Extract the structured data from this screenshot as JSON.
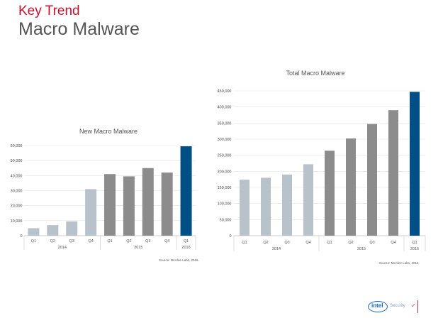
{
  "slide": {
    "kicker": "Key Trend",
    "title": "Macro Malware",
    "kicker_color": "#c8102e",
    "title_color": "#555555"
  },
  "chart_data": [
    {
      "type": "bar",
      "title": "New Macro Malware",
      "categories": [
        "Q1",
        "Q2",
        "Q3",
        "Q4",
        "Q1",
        "Q2",
        "Q3",
        "Q4",
        "Q1"
      ],
      "year_groups": [
        {
          "label": "2014",
          "count": 4
        },
        {
          "label": "2015",
          "count": 4
        },
        {
          "label": "2016",
          "count": 1
        }
      ],
      "values": [
        5000,
        7000,
        9500,
        31000,
        41000,
        39500,
        45000,
        42000,
        59500
      ],
      "bar_colors": [
        "#b8c2ca",
        "#b8c2ca",
        "#b8c2ca",
        "#b8c2ca",
        "#8c8c8c",
        "#8c8c8c",
        "#8c8c8c",
        "#8c8c8c",
        "#005087"
      ],
      "yticks": [
        0,
        10000,
        20000,
        30000,
        40000,
        50000,
        60000
      ],
      "ytick_labels": [
        "0",
        "10,000",
        "20,000",
        "30,000",
        "40,000",
        "50,000",
        "60,000"
      ],
      "ylim": [
        0,
        60000
      ],
      "grid": true,
      "legend": "none",
      "source": "Source: McAfee Labs, 2016."
    },
    {
      "type": "bar",
      "title": "Total Macro Malware",
      "categories": [
        "Q1",
        "Q2",
        "Q3",
        "Q4",
        "Q1",
        "Q2",
        "Q3",
        "Q4",
        "Q1"
      ],
      "year_groups": [
        {
          "label": "2014",
          "count": 4
        },
        {
          "label": "2015",
          "count": 4
        },
        {
          "label": "2016",
          "count": 1
        }
      ],
      "values": [
        174000,
        180000,
        190000,
        222000,
        264000,
        302000,
        347000,
        390000,
        447000
      ],
      "bar_colors": [
        "#b8c2ca",
        "#b8c2ca",
        "#b8c2ca",
        "#b8c2ca",
        "#8c8c8c",
        "#8c8c8c",
        "#8c8c8c",
        "#8c8c8c",
        "#005087"
      ],
      "yticks": [
        0,
        50000,
        100000,
        150000,
        200000,
        250000,
        300000,
        350000,
        400000,
        450000
      ],
      "ytick_labels": [
        "0",
        "50,000",
        "100,000",
        "150,000",
        "200,000",
        "250,000",
        "300,000",
        "350,000",
        "400,000",
        "450,000"
      ],
      "ylim": [
        0,
        450000
      ],
      "grid": true,
      "legend": "none",
      "source": "Source: McAfee Labs, 2016."
    }
  ],
  "logo": {
    "word": "intel",
    "sub": "Security"
  }
}
